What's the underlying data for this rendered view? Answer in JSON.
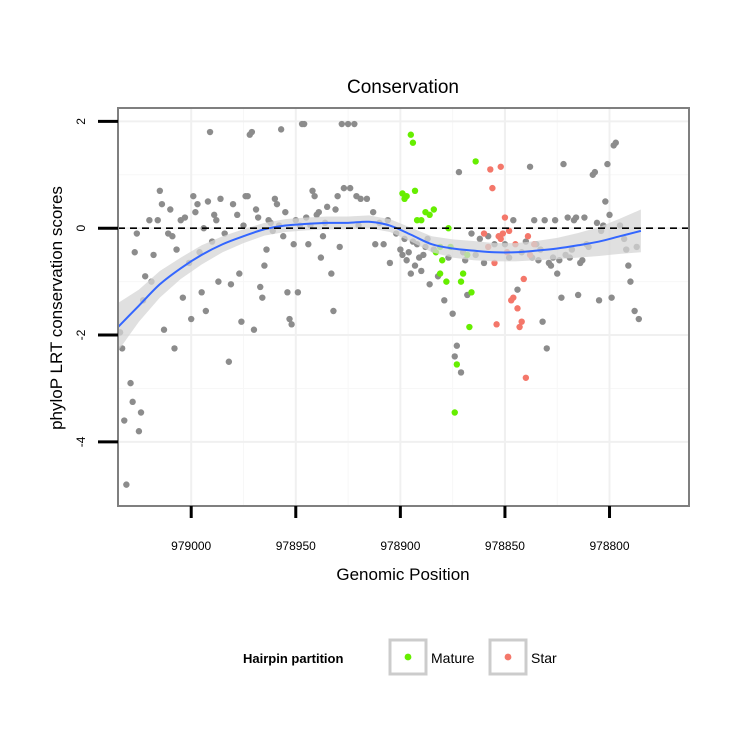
{
  "chart_data": {
    "type": "scatter",
    "title": "Conservation",
    "xlabel": "Genomic Position",
    "ylabel": "phyloP LRT conservation scores",
    "x_reversed": true,
    "xlim": [
      979035,
      978762
    ],
    "ylim": [
      -5.2,
      2.25
    ],
    "x_ticks": [
      {
        "value": 979000,
        "label": "979000"
      },
      {
        "value": 978950,
        "label": "978950"
      },
      {
        "value": 978900,
        "label": "978900"
      },
      {
        "value": 978850,
        "label": "978850"
      },
      {
        "value": 978800,
        "label": "978800"
      }
    ],
    "y_ticks": [
      {
        "value": 2,
        "label": "2"
      },
      {
        "value": 0,
        "label": "0"
      },
      {
        "value": -2,
        "label": "-2"
      },
      {
        "value": -4,
        "label": "-4"
      }
    ],
    "grid": true,
    "reference_line": {
      "y": 0,
      "style": "dashed"
    },
    "legend": {
      "title": "Hairpin partition",
      "position": "bottom",
      "entries": [
        {
          "name": "Mature",
          "color": "#66ee00"
        },
        {
          "name": "Star",
          "color": "#f4776a"
        }
      ]
    },
    "colors": {
      "other": "#8c8c8c",
      "mature": "#66ee00",
      "star": "#f4776a",
      "smooth": "#3366ff",
      "band": "#d6d6d6"
    },
    "series": [
      {
        "group": "other",
        "points": [
          [
            979034,
            -1.95
          ],
          [
            979033,
            -2.25
          ],
          [
            979032,
            -3.6
          ],
          [
            979031,
            -4.8
          ],
          [
            979029,
            -2.9
          ],
          [
            979028,
            -3.25
          ],
          [
            979027,
            -0.45
          ],
          [
            979026,
            -0.1
          ],
          [
            979025,
            -3.8
          ],
          [
            979024,
            -3.45
          ],
          [
            979023,
            -1.35
          ],
          [
            979022,
            -0.9
          ],
          [
            979020,
            0.15
          ],
          [
            979019,
            -1.0
          ],
          [
            979018,
            -0.5
          ],
          [
            979016,
            0.15
          ],
          [
            979015,
            0.7
          ],
          [
            979014,
            0.45
          ],
          [
            979013,
            -1.9
          ],
          [
            979011,
            -0.1
          ],
          [
            979010,
            0.35
          ],
          [
            979009,
            -0.15
          ],
          [
            979008,
            -2.25
          ],
          [
            979007,
            -0.4
          ],
          [
            979005,
            0.15
          ],
          [
            979004,
            -1.3
          ],
          [
            979003,
            0.2
          ],
          [
            979001,
            -0.65
          ],
          [
            979000,
            -1.7
          ],
          [
            978999,
            0.6
          ],
          [
            978998,
            0.3
          ],
          [
            978997,
            0.45
          ],
          [
            978996,
            -0.45
          ],
          [
            978995,
            -1.2
          ],
          [
            978994,
            0.0
          ],
          [
            978993,
            -1.55
          ],
          [
            978992,
            0.5
          ],
          [
            978991,
            1.8
          ],
          [
            978990,
            -0.25
          ],
          [
            978989,
            0.25
          ],
          [
            978988,
            0.15
          ],
          [
            978987,
            -1.0
          ],
          [
            978986,
            0.55
          ],
          [
            978984,
            -0.1
          ],
          [
            978982,
            -2.5
          ],
          [
            978981,
            -1.05
          ],
          [
            978980,
            0.45
          ],
          [
            978978,
            0.25
          ],
          [
            978977,
            -0.85
          ],
          [
            978976,
            -1.75
          ],
          [
            978975,
            0.05
          ],
          [
            978974,
            0.6
          ],
          [
            978973,
            0.6
          ],
          [
            978972,
            1.75
          ],
          [
            978971,
            1.8
          ],
          [
            978970,
            -1.9
          ],
          [
            978969,
            0.35
          ],
          [
            978968,
            0.2
          ],
          [
            978967,
            -1.1
          ],
          [
            978966,
            -1.3
          ],
          [
            978965,
            -0.7
          ],
          [
            978964,
            -0.4
          ],
          [
            978963,
            0.15
          ],
          [
            978962,
            0.1
          ],
          [
            978961,
            -0.05
          ],
          [
            978960,
            0.55
          ],
          [
            978959,
            0.45
          ],
          [
            978958,
            0.05
          ],
          [
            978957,
            1.85
          ],
          [
            978956,
            -0.15
          ],
          [
            978955,
            0.3
          ],
          [
            978954,
            -1.2
          ],
          [
            978953,
            -1.7
          ],
          [
            978952,
            -1.8
          ],
          [
            978951,
            -0.3
          ],
          [
            978950,
            0.15
          ],
          [
            978949,
            -1.2
          ],
          [
            978948,
            0.05
          ],
          [
            978947,
            1.95
          ],
          [
            978946,
            1.95
          ],
          [
            978945,
            0.2
          ],
          [
            978944,
            -0.3
          ],
          [
            978943,
            0.05
          ],
          [
            978942,
            0.7
          ],
          [
            978941,
            0.6
          ],
          [
            978940,
            0.25
          ],
          [
            978939,
            0.3
          ],
          [
            978938,
            -0.55
          ],
          [
            978937,
            -0.15
          ],
          [
            978936,
            0.1
          ],
          [
            978935,
            0.4
          ],
          [
            978933,
            -0.85
          ],
          [
            978932,
            -1.55
          ],
          [
            978931,
            0.35
          ],
          [
            978930,
            0.6
          ],
          [
            978929,
            -0.35
          ],
          [
            978928,
            1.95
          ],
          [
            978927,
            0.75
          ],
          [
            978925,
            1.95
          ],
          [
            978924,
            0.75
          ],
          [
            978922,
            1.95
          ],
          [
            978921,
            0.6
          ],
          [
            978920,
            0.05
          ],
          [
            978919,
            0.55
          ],
          [
            978916,
            0.55
          ],
          [
            978913,
            0.3
          ],
          [
            978912,
            -0.3
          ],
          [
            978910,
            0.1
          ],
          [
            978908,
            -0.3
          ],
          [
            978906,
            0.15
          ],
          [
            978905,
            -0.65
          ],
          [
            978902,
            -0.1
          ],
          [
            978900,
            -0.4
          ],
          [
            978899,
            -0.5
          ],
          [
            978898,
            -0.2
          ],
          [
            978897,
            -0.6
          ],
          [
            978896,
            -0.45
          ],
          [
            978895,
            -0.85
          ],
          [
            978894,
            -0.25
          ],
          [
            978893,
            -0.7
          ],
          [
            978892,
            -0.3
          ],
          [
            978891,
            -0.55
          ],
          [
            978890,
            -0.8
          ],
          [
            978889,
            -0.5
          ],
          [
            978888,
            -0.35
          ],
          [
            978887,
            -0.2
          ],
          [
            978886,
            -1.05
          ],
          [
            978884,
            -0.4
          ],
          [
            978882,
            -0.9
          ],
          [
            978879,
            -1.35
          ],
          [
            978877,
            -0.55
          ],
          [
            978875,
            -1.6
          ],
          [
            978874,
            -2.4
          ],
          [
            978873,
            -2.2
          ],
          [
            978872,
            1.05
          ],
          [
            978871,
            -2.7
          ],
          [
            978870,
            -0.45
          ],
          [
            978869,
            -0.6
          ],
          [
            978868,
            -1.25
          ],
          [
            978866,
            -0.1
          ],
          [
            978864,
            -0.5
          ],
          [
            978862,
            -0.2
          ],
          [
            978860,
            -0.65
          ],
          [
            978858,
            -0.15
          ],
          [
            978855,
            -0.3
          ],
          [
            978850,
            -0.3
          ],
          [
            978848,
            -0.55
          ],
          [
            978846,
            0.15
          ],
          [
            978844,
            -1.15
          ],
          [
            978842,
            -0.45
          ],
          [
            978840,
            -0.25
          ],
          [
            978838,
            1.15
          ],
          [
            978837,
            -0.55
          ],
          [
            978836,
            0.15
          ],
          [
            978835,
            -0.3
          ],
          [
            978834,
            -0.6
          ],
          [
            978833,
            -0.4
          ],
          [
            978832,
            -1.75
          ],
          [
            978831,
            0.15
          ],
          [
            978830,
            -2.25
          ],
          [
            978829,
            -0.65
          ],
          [
            978828,
            -0.7
          ],
          [
            978827,
            -0.55
          ],
          [
            978826,
            0.15
          ],
          [
            978825,
            -0.85
          ],
          [
            978824,
            -0.6
          ],
          [
            978823,
            -1.3
          ],
          [
            978822,
            1.2
          ],
          [
            978821,
            -0.5
          ],
          [
            978820,
            0.2
          ],
          [
            978819,
            -0.55
          ],
          [
            978818,
            -0.4
          ],
          [
            978817,
            0.15
          ],
          [
            978816,
            0.2
          ],
          [
            978815,
            -1.25
          ],
          [
            978814,
            -0.65
          ],
          [
            978813,
            -0.6
          ],
          [
            978812,
            0.2
          ],
          [
            978811,
            -0.3
          ],
          [
            978810,
            -0.35
          ],
          [
            978808,
            1.0
          ],
          [
            978807,
            1.05
          ],
          [
            978806,
            0.1
          ],
          [
            978805,
            -1.35
          ],
          [
            978804,
            -0.05
          ],
          [
            978803,
            0.05
          ],
          [
            978802,
            0.5
          ],
          [
            978801,
            1.2
          ],
          [
            978800,
            0.25
          ],
          [
            978799,
            -1.3
          ],
          [
            978798,
            1.55
          ],
          [
            978797,
            1.6
          ],
          [
            978795,
            0.05
          ],
          [
            978793,
            -0.2
          ],
          [
            978792,
            -0.4
          ],
          [
            978791,
            -0.7
          ],
          [
            978790,
            -1.0
          ],
          [
            978788,
            -1.55
          ],
          [
            978787,
            -0.35
          ],
          [
            978786,
            -1.7
          ]
        ]
      },
      {
        "name": "Mature",
        "group": "mature",
        "points": [
          [
            978895,
            1.75
          ],
          [
            978894,
            1.6
          ],
          [
            978899,
            0.65
          ],
          [
            978898,
            0.55
          ],
          [
            978897,
            0.6
          ],
          [
            978893,
            0.7
          ],
          [
            978892,
            0.15
          ],
          [
            978890,
            0.15
          ],
          [
            978888,
            0.3
          ],
          [
            978886,
            0.25
          ],
          [
            978884,
            0.35
          ],
          [
            978883,
            -0.45
          ],
          [
            978881,
            -0.85
          ],
          [
            978880,
            -0.6
          ],
          [
            978878,
            -1.0
          ],
          [
            978877,
            0.0
          ],
          [
            978876,
            -0.35
          ],
          [
            978881,
            -0.35
          ],
          [
            978874,
            -3.45
          ],
          [
            978873,
            -2.55
          ],
          [
            978871,
            -1.0
          ],
          [
            978870,
            -0.85
          ],
          [
            978868,
            -0.5
          ],
          [
            978867,
            -1.85
          ],
          [
            978866,
            -1.2
          ],
          [
            978864,
            1.25
          ]
        ]
      },
      {
        "name": "Star",
        "group": "star",
        "points": [
          [
            978857,
            1.1
          ],
          [
            978856,
            0.75
          ],
          [
            978853,
            -0.15
          ],
          [
            978852,
            -0.2
          ],
          [
            978851,
            -0.1
          ],
          [
            978850,
            0.2
          ],
          [
            978849,
            -0.45
          ],
          [
            978848,
            -0.05
          ],
          [
            978847,
            -1.35
          ],
          [
            978846,
            -1.3
          ],
          [
            978845,
            -0.3
          ],
          [
            978844,
            -1.5
          ],
          [
            978843,
            -1.85
          ],
          [
            978842,
            -1.75
          ],
          [
            978841,
            -0.95
          ],
          [
            978840,
            -2.8
          ],
          [
            978839,
            -0.15
          ],
          [
            978838,
            -0.5
          ],
          [
            978860,
            -0.1
          ],
          [
            978858,
            -0.35
          ],
          [
            978855,
            -0.65
          ],
          [
            978854,
            -1.8
          ],
          [
            978852,
            1.15
          ],
          [
            978836,
            -0.3
          ]
        ]
      }
    ],
    "smooth": {
      "x": [
        979035,
        979025,
        979015,
        979005,
        978995,
        978985,
        978975,
        978965,
        978955,
        978945,
        978935,
        978925,
        978915,
        978905,
        978895,
        978885,
        978875,
        978865,
        978855,
        978845,
        978835,
        978825,
        978815,
        978805,
        978795,
        978785
      ],
      "y": [
        -1.85,
        -1.45,
        -1.05,
        -0.75,
        -0.5,
        -0.3,
        -0.15,
        -0.02,
        0.05,
        0.08,
        0.1,
        0.1,
        0.12,
        0.05,
        -0.12,
        -0.3,
        -0.38,
        -0.42,
        -0.45,
        -0.45,
        -0.42,
        -0.38,
        -0.32,
        -0.25,
        -0.15,
        -0.05
      ],
      "lower": [
        -2.3,
        -1.75,
        -1.3,
        -0.95,
        -0.68,
        -0.45,
        -0.28,
        -0.14,
        -0.07,
        -0.04,
        -0.02,
        -0.02,
        0.0,
        -0.07,
        -0.25,
        -0.45,
        -0.55,
        -0.6,
        -0.62,
        -0.62,
        -0.6,
        -0.58,
        -0.55,
        -0.52,
        -0.48,
        -0.45
      ],
      "upper": [
        -1.4,
        -1.15,
        -0.8,
        -0.55,
        -0.32,
        -0.15,
        -0.02,
        0.1,
        0.17,
        0.2,
        0.22,
        0.22,
        0.24,
        0.17,
        0.01,
        -0.15,
        -0.21,
        -0.24,
        -0.28,
        -0.28,
        -0.24,
        -0.18,
        -0.09,
        0.02,
        0.18,
        0.35
      ]
    }
  }
}
